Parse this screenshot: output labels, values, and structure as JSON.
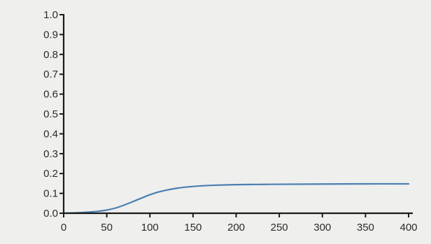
{
  "chart_data": {
    "type": "line",
    "title": "",
    "xlabel": "",
    "ylabel": "",
    "xlim": [
      0,
      400
    ],
    "ylim": [
      0,
      1.0
    ],
    "x_ticks": [
      {
        "value": 0,
        "label": "0"
      },
      {
        "value": 50,
        "label": "50"
      },
      {
        "value": 100,
        "label": "100"
      },
      {
        "value": 150,
        "label": "150"
      },
      {
        "value": 200,
        "label": "200"
      },
      {
        "value": 250,
        "label": "250"
      },
      {
        "value": 300,
        "label": "300"
      },
      {
        "value": 350,
        "label": "350"
      },
      {
        "value": 400,
        "label": "400"
      }
    ],
    "y_ticks": [
      {
        "value": 0.0,
        "label": "0.0"
      },
      {
        "value": 0.1,
        "label": "0.1"
      },
      {
        "value": 0.2,
        "label": "0.2"
      },
      {
        "value": 0.3,
        "label": "0.3"
      },
      {
        "value": 0.4,
        "label": "0.4"
      },
      {
        "value": 0.5,
        "label": "0.5"
      },
      {
        "value": 0.6,
        "label": "0.6"
      },
      {
        "value": 0.7,
        "label": "0.7"
      },
      {
        "value": 0.8,
        "label": "0.8"
      },
      {
        "value": 0.9,
        "label": "0.9"
      },
      {
        "value": 1.0,
        "label": "1.0"
      }
    ],
    "grid": false,
    "legend": "none",
    "series": [
      {
        "color": "#4a7fb3",
        "x": [
          0,
          20,
          40,
          50,
          60,
          70,
          80,
          90,
          100,
          110,
          120,
          130,
          140,
          150,
          160,
          175,
          200,
          225,
          250,
          300,
          350,
          400
        ],
        "y": [
          0.0,
          0.003,
          0.01,
          0.016,
          0.026,
          0.041,
          0.058,
          0.076,
          0.093,
          0.107,
          0.117,
          0.125,
          0.131,
          0.135,
          0.138,
          0.141,
          0.144,
          0.145,
          0.146,
          0.147,
          0.148,
          0.148
        ]
      }
    ]
  }
}
